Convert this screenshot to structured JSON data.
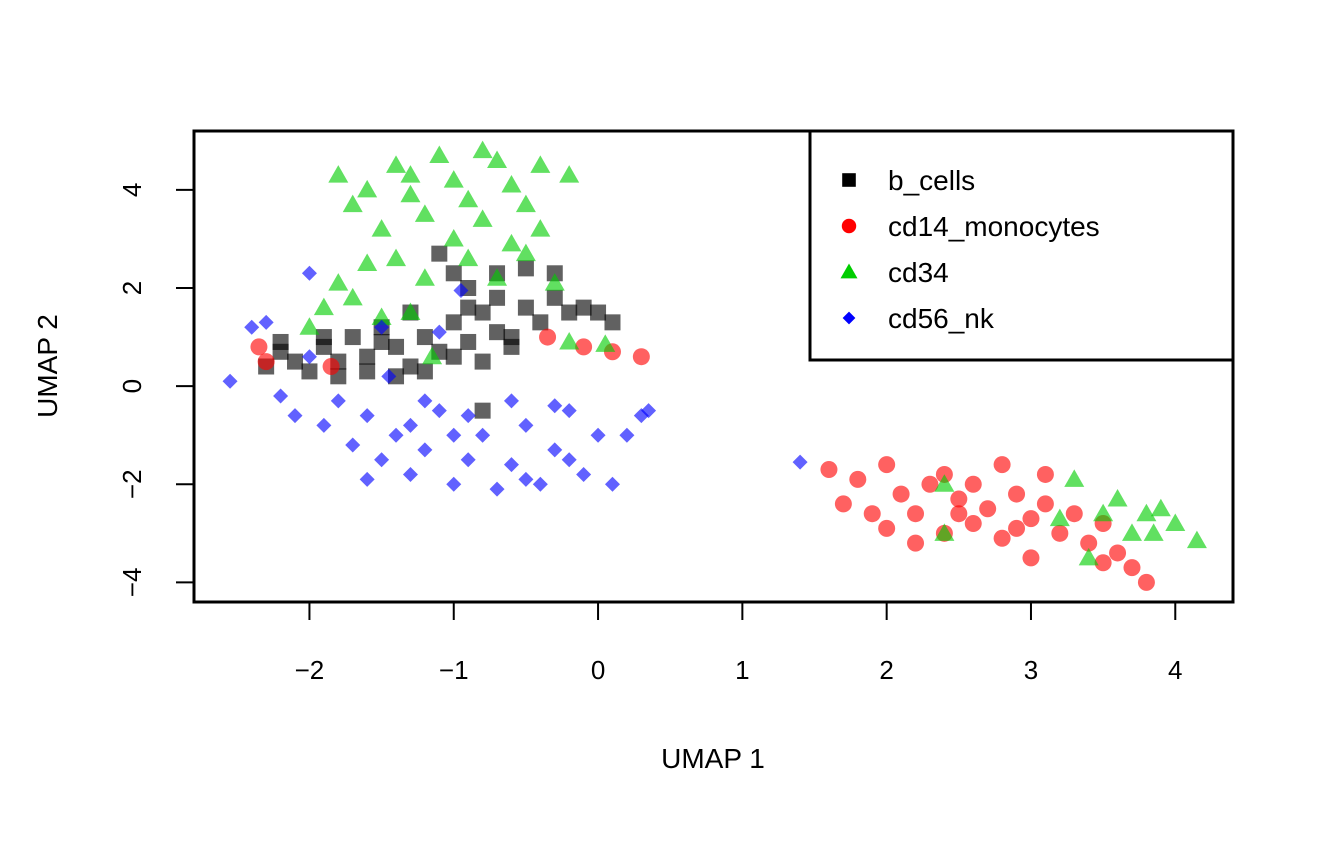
{
  "chart_data": {
    "type": "scatter",
    "title": "",
    "xlabel": "UMAP 1",
    "ylabel": "UMAP 2",
    "xlim": [
      -2.8,
      4.4
    ],
    "ylim": [
      -4.4,
      5.2
    ],
    "xticks": [
      -2,
      -1,
      0,
      1,
      2,
      3,
      4
    ],
    "yticks": [
      -4,
      -2,
      0,
      2,
      4
    ],
    "xtick_labels": [
      "−2",
      "−1",
      "0",
      "1",
      "2",
      "3",
      "4"
    ],
    "ytick_labels": [
      "−4",
      "−2",
      "0",
      "2",
      "4"
    ],
    "grid": false,
    "legend_position": "top-right",
    "series": [
      {
        "name": "b_cells",
        "marker": "square",
        "color": "#000000",
        "points": [
          [
            -2.3,
            0.4
          ],
          [
            -2.2,
            0.7
          ],
          [
            -2.1,
            0.5
          ],
          [
            -2.0,
            0.3
          ],
          [
            -1.9,
            0.8
          ],
          [
            -1.8,
            0.5
          ],
          [
            -1.7,
            1.0
          ],
          [
            -1.6,
            0.6
          ],
          [
            -1.5,
            1.2
          ],
          [
            -1.4,
            0.8
          ],
          [
            -1.3,
            0.4
          ],
          [
            -1.2,
            1.0
          ],
          [
            -1.1,
            0.7
          ],
          [
            -1.0,
            1.3
          ],
          [
            -0.9,
            0.9
          ],
          [
            -0.8,
            1.5
          ],
          [
            -0.7,
            1.1
          ],
          [
            -0.6,
            0.8
          ],
          [
            -0.5,
            1.6
          ],
          [
            -0.4,
            1.3
          ],
          [
            -0.3,
            1.8
          ],
          [
            -0.2,
            1.5
          ],
          [
            -0.1,
            1.6
          ],
          [
            0.0,
            1.5
          ],
          [
            0.1,
            1.3
          ],
          [
            -1.8,
            0.2
          ],
          [
            -1.6,
            0.3
          ],
          [
            -1.4,
            0.2
          ],
          [
            -1.2,
            0.3
          ],
          [
            -1.0,
            0.6
          ],
          [
            -0.8,
            0.5
          ],
          [
            -0.6,
            1.0
          ],
          [
            -1.1,
            2.7
          ],
          [
            -1.0,
            2.3
          ],
          [
            -0.9,
            2.0
          ],
          [
            -0.7,
            2.3
          ],
          [
            -0.5,
            2.4
          ],
          [
            -0.3,
            2.3
          ],
          [
            -1.3,
            1.5
          ],
          [
            -1.5,
            0.9
          ],
          [
            -0.9,
            1.6
          ],
          [
            -0.7,
            1.8
          ],
          [
            -0.8,
            -0.5
          ],
          [
            -1.9,
            1.0
          ],
          [
            -2.2,
            0.9
          ]
        ]
      },
      {
        "name": "cd14_monocytes",
        "marker": "circle",
        "color": "#ff0000",
        "points": [
          [
            -2.35,
            0.8
          ],
          [
            -2.3,
            0.5
          ],
          [
            -1.85,
            0.4
          ],
          [
            -0.35,
            1.0
          ],
          [
            -0.1,
            0.8
          ],
          [
            0.1,
            0.7
          ],
          [
            0.3,
            0.6
          ],
          [
            1.6,
            -1.7
          ],
          [
            1.7,
            -2.4
          ],
          [
            1.8,
            -1.9
          ],
          [
            1.9,
            -2.6
          ],
          [
            2.0,
            -2.9
          ],
          [
            2.1,
            -2.2
          ],
          [
            2.2,
            -2.6
          ],
          [
            2.3,
            -2.0
          ],
          [
            2.4,
            -3.0
          ],
          [
            2.5,
            -2.3
          ],
          [
            2.6,
            -2.8
          ],
          [
            2.7,
            -2.5
          ],
          [
            2.8,
            -3.1
          ],
          [
            2.9,
            -2.2
          ],
          [
            3.0,
            -2.7
          ],
          [
            3.1,
            -2.4
          ],
          [
            3.2,
            -3.0
          ],
          [
            3.3,
            -2.6
          ],
          [
            3.4,
            -3.2
          ],
          [
            3.5,
            -2.8
          ],
          [
            3.6,
            -3.4
          ],
          [
            3.7,
            -3.7
          ],
          [
            3.8,
            -4.0
          ],
          [
            2.0,
            -1.6
          ],
          [
            2.4,
            -1.8
          ],
          [
            2.8,
            -1.6
          ],
          [
            3.1,
            -1.8
          ],
          [
            3.0,
            -3.5
          ],
          [
            2.6,
            -2.0
          ],
          [
            2.2,
            -3.2
          ],
          [
            3.5,
            -3.6
          ],
          [
            2.5,
            -2.6
          ],
          [
            2.9,
            -2.9
          ]
        ]
      },
      {
        "name": "cd34",
        "marker": "triangle",
        "color": "#00cd00",
        "points": [
          [
            -1.8,
            4.3
          ],
          [
            -1.6,
            4.0
          ],
          [
            -1.4,
            4.5
          ],
          [
            -1.3,
            3.9
          ],
          [
            -1.1,
            4.7
          ],
          [
            -1.0,
            4.2
          ],
          [
            -0.9,
            3.8
          ],
          [
            -0.7,
            4.6
          ],
          [
            -0.6,
            4.1
          ],
          [
            -0.5,
            3.7
          ],
          [
            -0.4,
            4.5
          ],
          [
            -0.2,
            4.3
          ],
          [
            -1.7,
            3.7
          ],
          [
            -1.5,
            3.2
          ],
          [
            -1.2,
            3.5
          ],
          [
            -1.0,
            3.0
          ],
          [
            -0.8,
            3.4
          ],
          [
            -0.6,
            2.9
          ],
          [
            -0.4,
            3.2
          ],
          [
            -1.4,
            2.6
          ],
          [
            -1.2,
            2.2
          ],
          [
            -0.9,
            2.6
          ],
          [
            -0.7,
            2.2
          ],
          [
            -0.5,
            2.7
          ],
          [
            -1.8,
            2.1
          ],
          [
            -1.6,
            2.5
          ],
          [
            -1.9,
            1.6
          ],
          [
            -1.7,
            1.8
          ],
          [
            -1.5,
            1.4
          ],
          [
            -2.0,
            1.2
          ],
          [
            -1.3,
            1.5
          ],
          [
            -1.15,
            0.6
          ],
          [
            -0.2,
            0.9
          ],
          [
            0.05,
            0.85
          ],
          [
            2.4,
            -2.0
          ],
          [
            2.4,
            -3.0
          ],
          [
            3.3,
            -1.9
          ],
          [
            3.2,
            -2.7
          ],
          [
            3.4,
            -3.5
          ],
          [
            3.5,
            -2.6
          ],
          [
            3.6,
            -2.3
          ],
          [
            3.7,
            -3.0
          ],
          [
            3.8,
            -2.6
          ],
          [
            3.9,
            -2.5
          ],
          [
            4.0,
            -2.8
          ],
          [
            4.15,
            -3.15
          ],
          [
            3.85,
            -3.0
          ],
          [
            -0.3,
            2.1
          ],
          [
            -0.8,
            4.8
          ],
          [
            -1.3,
            4.3
          ]
        ]
      },
      {
        "name": "cd56_nk",
        "marker": "diamond",
        "color": "#0000ff",
        "points": [
          [
            -2.55,
            0.1
          ],
          [
            -2.4,
            1.2
          ],
          [
            -2.3,
            1.3
          ],
          [
            -2.2,
            -0.2
          ],
          [
            -2.1,
            -0.6
          ],
          [
            -2.0,
            0.6
          ],
          [
            -1.9,
            -0.8
          ],
          [
            -1.8,
            -0.3
          ],
          [
            -1.7,
            -1.2
          ],
          [
            -1.6,
            -0.6
          ],
          [
            -1.5,
            -1.5
          ],
          [
            -1.4,
            -1.0
          ],
          [
            -1.3,
            -1.8
          ],
          [
            -1.2,
            -1.3
          ],
          [
            -1.1,
            -0.5
          ],
          [
            -1.0,
            -2.0
          ],
          [
            -0.9,
            -1.5
          ],
          [
            -0.8,
            -1.0
          ],
          [
            -0.7,
            -2.1
          ],
          [
            -0.6,
            -1.6
          ],
          [
            -0.5,
            -0.8
          ],
          [
            -0.4,
            -2.0
          ],
          [
            -0.3,
            -1.3
          ],
          [
            -0.2,
            -0.5
          ],
          [
            -0.1,
            -1.8
          ],
          [
            0.0,
            -1.0
          ],
          [
            0.1,
            -2.0
          ],
          [
            0.2,
            -1.0
          ],
          [
            0.3,
            -0.6
          ],
          [
            0.35,
            -0.5
          ],
          [
            -1.5,
            1.2
          ],
          [
            -1.1,
            1.1
          ],
          [
            -0.95,
            1.95
          ],
          [
            -2.0,
            2.3
          ],
          [
            -1.45,
            0.2
          ],
          [
            -1.2,
            -0.3
          ],
          [
            -0.9,
            -0.6
          ],
          [
            -0.6,
            -0.3
          ],
          [
            -0.3,
            -0.4
          ],
          [
            1.4,
            -1.55
          ],
          [
            -1.6,
            -1.9
          ],
          [
            -1.0,
            -1.0
          ],
          [
            -0.5,
            -1.9
          ],
          [
            -0.2,
            -1.5
          ],
          [
            -1.3,
            -0.8
          ]
        ]
      }
    ]
  }
}
